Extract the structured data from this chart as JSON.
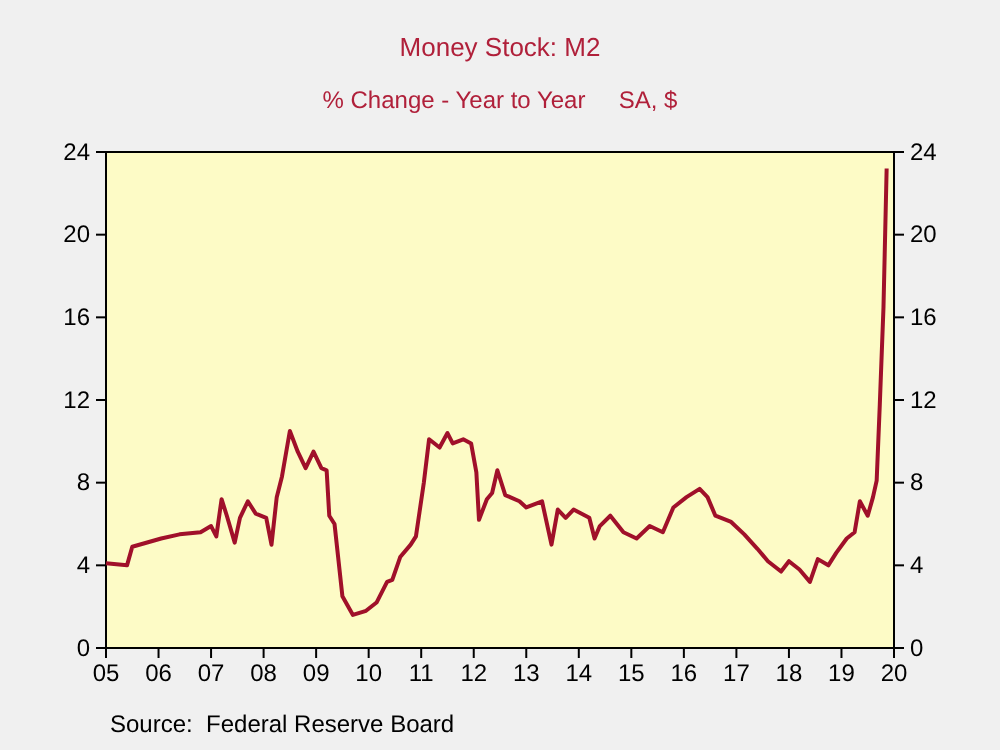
{
  "chart_data": {
    "type": "line",
    "title": "Money Stock: M2",
    "subtitle": "% Change - Year to Year     SA, $",
    "annotations": [
      "Source:  Federal Reserve Board"
    ],
    "xlim": [
      2005,
      2020
    ],
    "xticks": [
      {
        "value": 2005,
        "label": "05"
      },
      {
        "value": 2006,
        "label": "06"
      },
      {
        "value": 2007,
        "label": "07"
      },
      {
        "value": 2008,
        "label": "08"
      },
      {
        "value": 2009,
        "label": "09"
      },
      {
        "value": 2010,
        "label": "10"
      },
      {
        "value": 2011,
        "label": "11"
      },
      {
        "value": 2012,
        "label": "12"
      },
      {
        "value": 2013,
        "label": "13"
      },
      {
        "value": 2014,
        "label": "14"
      },
      {
        "value": 2015,
        "label": "15"
      },
      {
        "value": 2016,
        "label": "16"
      },
      {
        "value": 2017,
        "label": "17"
      },
      {
        "value": 2018,
        "label": "18"
      },
      {
        "value": 2019,
        "label": "19"
      },
      {
        "value": 2020,
        "label": "20"
      }
    ],
    "ylim": [
      0,
      24
    ],
    "yticks": [
      0,
      4,
      8,
      12,
      16,
      20,
      24
    ],
    "y2lim": [
      0,
      24
    ],
    "y2ticks": [
      0,
      4,
      8,
      12,
      16,
      20,
      24
    ],
    "grid": false,
    "marker": "none",
    "line_style": "solid",
    "series": [
      {
        "color": "#a0102a",
        "x": [
          2005.0,
          2005.4,
          2005.5,
          2006.05,
          2006.4,
          2006.8,
          2007.0,
          2007.1,
          2007.2,
          2007.3,
          2007.45,
          2007.55,
          2007.7,
          2007.85,
          2008.05,
          2008.15,
          2008.25,
          2008.35,
          2008.5,
          2008.65,
          2008.8,
          2008.95,
          2009.1,
          2009.2,
          2009.25,
          2009.35,
          2009.5,
          2009.7,
          2009.95,
          2010.15,
          2010.35,
          2010.45,
          2010.6,
          2010.8,
          2010.9,
          2011.05,
          2011.15,
          2011.35,
          2011.5,
          2011.6,
          2011.8,
          2011.95,
          2012.05,
          2012.1,
          2012.25,
          2012.35,
          2012.45,
          2012.6,
          2012.87,
          2013.0,
          2013.3,
          2013.48,
          2013.6,
          2013.75,
          2013.9,
          2014.2,
          2014.3,
          2014.4,
          2014.6,
          2014.85,
          2015.1,
          2015.35,
          2015.6,
          2015.8,
          2016.05,
          2016.3,
          2016.45,
          2016.6,
          2016.9,
          2017.15,
          2017.4,
          2017.6,
          2017.85,
          2018.0,
          2018.2,
          2018.4,
          2018.55,
          2018.75,
          2018.9,
          2019.1,
          2019.25,
          2019.35,
          2019.5,
          2019.6,
          2019.67,
          2019.73,
          2019.8,
          2019.86
        ],
        "values": [
          4.1,
          4.0,
          4.9,
          5.3,
          5.5,
          5.6,
          5.9,
          5.4,
          7.2,
          6.4,
          5.1,
          6.3,
          7.1,
          6.5,
          6.3,
          5.0,
          7.3,
          8.3,
          10.5,
          9.5,
          8.7,
          9.5,
          8.7,
          8.6,
          6.4,
          6.0,
          2.5,
          1.6,
          1.8,
          2.2,
          3.2,
          3.3,
          4.4,
          5.0,
          5.4,
          8.0,
          10.1,
          9.7,
          10.4,
          9.9,
          10.1,
          9.9,
          8.5,
          6.2,
          7.2,
          7.5,
          8.6,
          7.4,
          7.1,
          6.8,
          7.1,
          5.0,
          6.7,
          6.3,
          6.7,
          6.3,
          5.3,
          5.9,
          6.4,
          5.6,
          5.3,
          5.9,
          5.6,
          6.8,
          7.3,
          7.7,
          7.3,
          6.4,
          6.1,
          5.5,
          4.8,
          4.2,
          3.7,
          4.2,
          3.8,
          3.2,
          4.3,
          4.0,
          4.6,
          5.3,
          5.6,
          7.1,
          6.4,
          7.3,
          8.1,
          11.8,
          16.5,
          23.2
        ]
      }
    ]
  }
}
